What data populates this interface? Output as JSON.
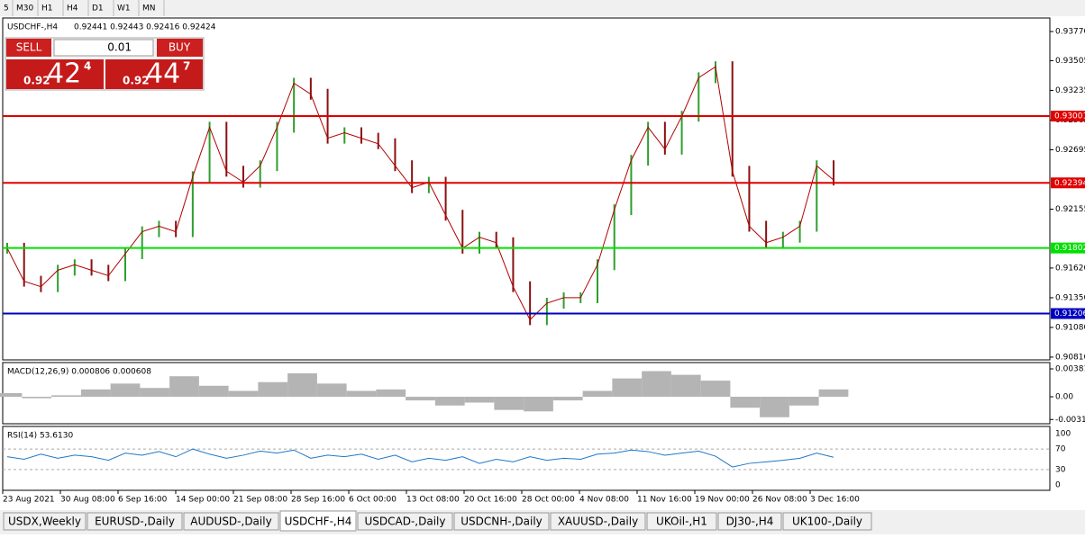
{
  "toolbar": {
    "timeframes": [
      "5",
      "M30",
      "H1",
      "H4",
      "D1",
      "W1",
      "MN"
    ]
  },
  "chart": {
    "header": "USDCHF-,H4",
    "quote": "0.92441 0.92443 0.92416 0.92424",
    "ylim": [
      0.90785,
      0.93893
    ],
    "yticks": [
      {
        "value": 0.9377,
        "label": "0.93770"
      },
      0.93505,
      0.93235,
      0.92965,
      0.92695,
      0.92155,
      {
        "value": 0.9162,
        "label": "0.91620"
      },
      {
        "value": 0.9135,
        "label": "0.91350"
      },
      {
        "value": 0.9108,
        "label": "0.91080"
      },
      {
        "value": 0.9081,
        "label": "0.90810"
      }
    ],
    "levels": [
      {
        "value": 0.93001,
        "color": "#e00000"
      },
      {
        "value": 0.92394,
        "color": "#e00000"
      },
      {
        "value": 0.91802,
        "color": "#00e000"
      },
      {
        "value": 0.91206,
        "color": "#0000c0"
      }
    ],
    "up_color": "#2e9e2e",
    "down_color": "#8b1010",
    "prices": [
      0.918,
      0.915,
      0.9145,
      0.916,
      0.9165,
      0.916,
      0.9155,
      0.9175,
      0.9195,
      0.92,
      0.9195,
      0.9245,
      0.929,
      0.925,
      0.924,
      0.9255,
      0.929,
      0.933,
      0.932,
      0.928,
      0.9285,
      0.928,
      0.9275,
      0.9255,
      0.9235,
      0.924,
      0.921,
      0.918,
      0.919,
      0.9185,
      0.9145,
      0.9115,
      0.913,
      0.9135,
      0.9135,
      0.9165,
      0.9215,
      0.926,
      0.929,
      0.927,
      0.93,
      0.9335,
      0.9345,
      0.925,
      0.92,
      0.9185,
      0.919,
      0.92,
      0.9255,
      0.9242
    ]
  },
  "trade_panel": {
    "sell": "SELL",
    "lot": "0.01",
    "buy": "BUY",
    "sell_prefix": "0.92",
    "sell_big": "42",
    "sell_small": "4",
    "buy_prefix": "0.92",
    "buy_big": "44",
    "buy_small": "7"
  },
  "macd": {
    "label": "MACD(12,26,9) 0.000806 0.000608",
    "ylim": [
      -0.00369,
      0.00467
    ],
    "yticks": [
      {
        "value": 0.003811,
        "label": "0.003811"
      },
      {
        "value": 0,
        "label": "0.00"
      },
      -0.00311
    ],
    "color": "#b4b4b4",
    "values": [
      0.0005,
      -0.0002,
      0.0002,
      0.001,
      0.0018,
      0.0012,
      0.0028,
      0.0015,
      0.0008,
      0.002,
      0.0032,
      0.0018,
      0.0008,
      0.001,
      -0.0005,
      -0.0012,
      -0.0008,
      -0.0018,
      -0.002,
      -0.0005,
      0.0008,
      0.0025,
      0.0035,
      0.003,
      0.0022,
      -0.0015,
      -0.0028,
      -0.0012,
      0.001
    ]
  },
  "rsi": {
    "label": "RSI(14) 53.6130",
    "ylim": [
      -10.5,
      114
    ],
    "yticks": [
      100,
      70,
      30,
      0
    ],
    "color": "#1e78c8",
    "values": [
      55,
      50,
      60,
      52,
      58,
      55,
      48,
      62,
      58,
      65,
      55,
      70,
      60,
      52,
      58,
      66,
      62,
      68,
      52,
      58,
      55,
      60,
      50,
      58,
      45,
      52,
      48,
      55,
      42,
      50,
      45,
      55,
      48,
      52,
      50,
      60,
      62,
      68,
      65,
      58,
      62,
      66,
      56,
      35,
      42,
      45,
      48,
      52,
      62,
      54
    ]
  },
  "xlabels": [
    "23 Aug 2021",
    "30 Aug 08:00",
    "6 Sep 16:00",
    "14 Sep 00:00",
    "21 Sep 08:00",
    "28 Sep 16:00",
    "6 Oct 00:00",
    "13 Oct 08:00",
    "20 Oct 16:00",
    "28 Oct 00:00",
    "4 Nov 08:00",
    "11 Nov 16:00",
    "19 Nov 00:00",
    "26 Nov 08:00",
    "3 Dec 16:00"
  ],
  "tabs": [
    "USDX,Weekly",
    "EURUSD-,Daily",
    "AUDUSD-,Daily",
    "USDCHF-,H4",
    "USDCAD-,Daily",
    "USDCNH-,Daily",
    "XAUUSD-,Daily",
    "UKOil-,H1",
    "DJ30-,H4",
    "UK100-,Daily"
  ],
  "active_tab": 3
}
